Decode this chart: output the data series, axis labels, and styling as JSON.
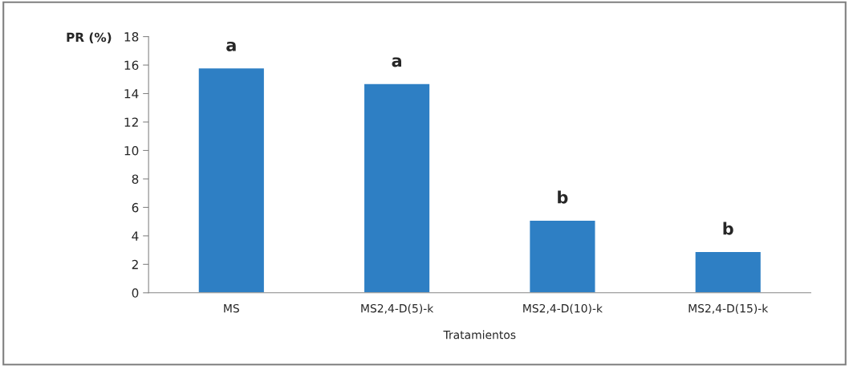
{
  "chart_data": {
    "type": "bar",
    "xlabel": "Tratamientos",
    "ylabel": "PR (%)",
    "categories": [
      "MS",
      "MS2,4-D(5)-k",
      "MS2,4-D(10)-k",
      "MS2,4-D(15)-k"
    ],
    "values": [
      15.8,
      14.7,
      5.1,
      2.9
    ],
    "color": "#2e7fc4",
    "ylim": [
      0,
      18
    ],
    "yticks": [
      0,
      2,
      4,
      6,
      8,
      10,
      12,
      14,
      16,
      18
    ],
    "grid": false,
    "annotations": [
      {
        "text": "a",
        "x": "MS",
        "y": 15.8
      },
      {
        "text": "a",
        "x": "MS2,4-D(5)-k",
        "y": 14.7
      },
      {
        "text": "b",
        "x": "MS2,4-D(10)-k",
        "y": 5.1
      },
      {
        "text": "b",
        "x": "MS2,4-D(15)-k",
        "y": 2.9
      }
    ]
  }
}
